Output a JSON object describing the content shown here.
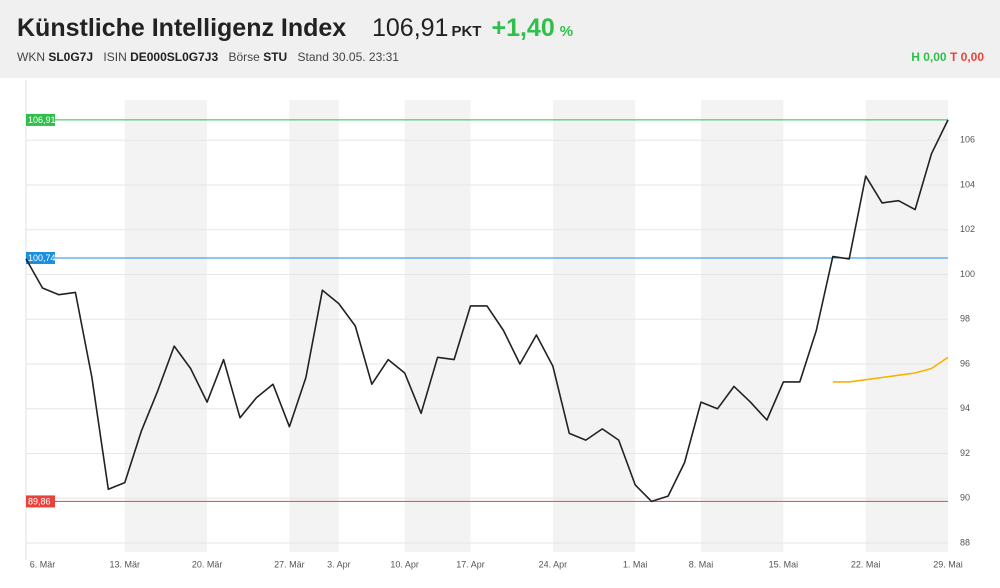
{
  "header": {
    "title": "Künstliche Intelligenz Index",
    "value": "106,91",
    "unit": "PKT",
    "change": "+1,40",
    "change_unit": "%",
    "meta": [
      {
        "label": "WKN",
        "value": "SL0G7J"
      },
      {
        "label": "ISIN",
        "value": "DE000SL0G7J3"
      },
      {
        "label": "Börse",
        "value": "STU"
      }
    ],
    "stand": "Stand 30.05. 23:31",
    "high_label": "H",
    "high": "0,00",
    "low_label": "T",
    "low": "0,00"
  },
  "chart_data": {
    "type": "line",
    "categories": [
      null,
      "6. Mär",
      null,
      null,
      null,
      null,
      "13. Mär",
      null,
      null,
      null,
      null,
      "20. Mär",
      null,
      null,
      null,
      null,
      "27. Mär",
      null,
      null,
      "3. Apr",
      null,
      null,
      null,
      "10. Apr",
      null,
      null,
      null,
      "17. Apr",
      null,
      null,
      null,
      null,
      "24. Apr",
      null,
      null,
      null,
      null,
      "1. Mai",
      null,
      null,
      null,
      "8. Mai",
      null,
      null,
      null,
      null,
      "15. Mai",
      null,
      null,
      null,
      null,
      "22. Mai",
      null,
      null,
      null,
      null,
      "29. Mai"
    ],
    "series": [
      {
        "color": "#222222",
        "values": [
          100.7,
          99.4,
          99.1,
          99.2,
          95.4,
          90.4,
          90.7,
          93.0,
          94.8,
          96.8,
          95.8,
          94.3,
          96.2,
          93.6,
          94.5,
          95.1,
          93.2,
          95.4,
          99.3,
          98.7,
          97.7,
          95.1,
          96.2,
          95.6,
          93.8,
          96.3,
          96.2,
          98.6,
          98.6,
          97.5,
          96.0,
          97.3,
          95.9,
          92.9,
          92.6,
          93.1,
          92.6,
          90.6,
          89.86,
          90.1,
          91.6,
          94.3,
          94.0,
          95.0,
          94.3,
          93.5,
          95.2,
          95.2,
          97.5,
          100.8,
          100.7,
          104.4,
          103.2,
          103.3,
          102.9,
          105.4,
          106.91
        ]
      },
      {
        "color": "#f5b400",
        "values": [
          null,
          null,
          null,
          null,
          null,
          null,
          null,
          null,
          null,
          null,
          null,
          null,
          null,
          null,
          null,
          null,
          null,
          null,
          null,
          null,
          null,
          null,
          null,
          null,
          null,
          null,
          null,
          null,
          null,
          null,
          null,
          null,
          null,
          null,
          null,
          null,
          null,
          null,
          null,
          null,
          null,
          null,
          null,
          null,
          null,
          null,
          null,
          null,
          null,
          95.2,
          95.2,
          95.3,
          95.4,
          95.5,
          95.6,
          95.8,
          96.3
        ]
      }
    ],
    "ylim": [
      87.6,
      107.8
    ],
    "yticks": [
      88,
      90,
      92,
      94,
      96,
      98,
      100,
      102,
      104,
      106
    ],
    "grid": true,
    "levels": [
      {
        "value": 106.91,
        "label": "106,91",
        "color": "#2fbf4a"
      },
      {
        "value": 100.74,
        "label": "100,74",
        "color": "#1a8fe0"
      },
      {
        "value": 89.86,
        "label": "89,86",
        "color": "#e8433a"
      }
    ]
  }
}
